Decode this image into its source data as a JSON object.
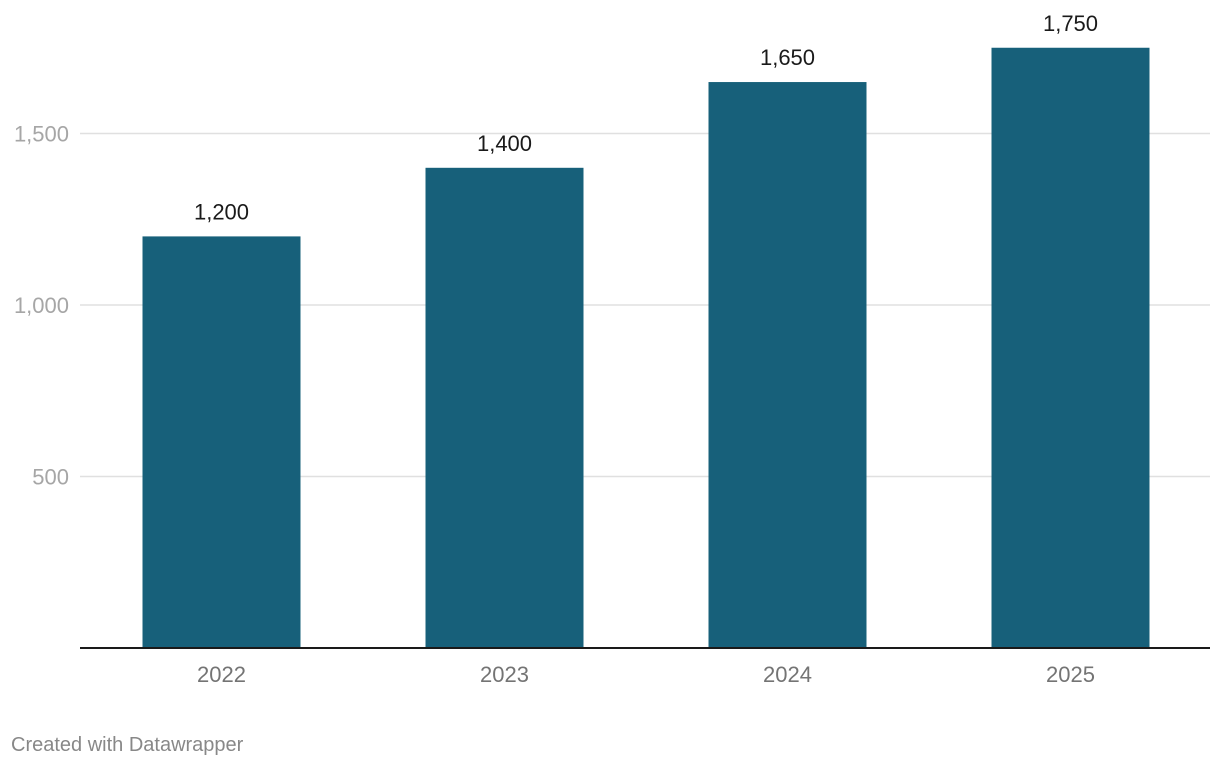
{
  "chart_data": {
    "type": "bar",
    "categories": [
      "2022",
      "2023",
      "2024",
      "2025"
    ],
    "values": [
      1200,
      1400,
      1650,
      1750
    ],
    "value_labels": [
      "1,200",
      "1,400",
      "1,650",
      "1,750"
    ],
    "y_ticks": [
      500,
      1000,
      1500
    ],
    "y_tick_labels": [
      "500",
      "1,000",
      "1,500"
    ],
    "ylim": [
      0,
      1800
    ],
    "grid": true,
    "bar_color": "#17607a",
    "title": "",
    "xlabel": "",
    "ylabel": ""
  },
  "footer": {
    "credit": "Created with Datawrapper"
  }
}
